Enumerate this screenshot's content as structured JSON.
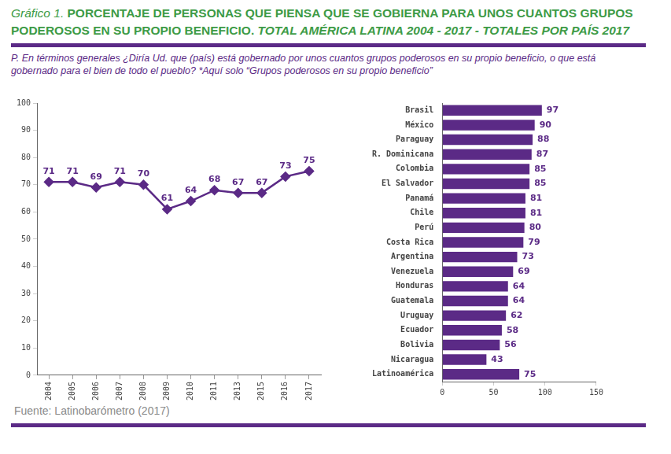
{
  "figure_label": "Gráfico 1.",
  "title": "PORCENTAJE DE PERSONAS QUE PIENSA QUE SE GOBIERNA PARA UNOS CUANTOS GRUPOS PODEROSOS EN SU PROPIO BENEFICIO.",
  "title_suffix": "TOTAL AMÉRICA LATINA 2004 - 2017 - TOTALES POR PAÍS 2017",
  "question": "P. En términos generales ¿Diría Ud. que (país) está gobernado por unos cuantos grupos poderosos en su propio beneficio, o que está gobernado para el bien de todo el pueblo? *Aquí solo “Grupos poderosos en su propio beneficio”",
  "source": "Fuente: Latinobarómetro (2017)",
  "chart_data": [
    {
      "type": "line",
      "categories": [
        "2004",
        "2005",
        "2006",
        "2007",
        "2008",
        "2009",
        "2010",
        "2011",
        "2013",
        "2015",
        "2016",
        "2017"
      ],
      "values": [
        71,
        71,
        69,
        71,
        70,
        61,
        64,
        68,
        67,
        67,
        73,
        75
      ],
      "color": "#5b2a86",
      "marker": "diamond",
      "ylim": [
        0,
        100
      ],
      "yticks": [
        0,
        10,
        20,
        30,
        40,
        50,
        60,
        70,
        80,
        90,
        100
      ],
      "grid": false,
      "data_labels": true
    },
    {
      "type": "bar",
      "orientation": "horizontal",
      "categories": [
        "Brasil",
        "México",
        "Paraguay",
        "R. Dominicana",
        "Colombia",
        "El Salvador",
        "Panamá",
        "Chile",
        "Perú",
        "Costa Rica",
        "Argentina",
        "Venezuela",
        "Honduras",
        "Guatemala",
        "Uruguay",
        "Ecuador",
        "Bolivia",
        "Nicaragua",
        "Latinoamérica"
      ],
      "values": [
        97,
        90,
        88,
        87,
        85,
        85,
        81,
        81,
        80,
        79,
        73,
        69,
        64,
        64,
        62,
        58,
        56,
        43,
        75
      ],
      "color": "#5b2a86",
      "xlim": [
        0,
        150
      ],
      "xticks": [
        0,
        50,
        100,
        150
      ],
      "grid": false,
      "data_labels": true
    }
  ]
}
